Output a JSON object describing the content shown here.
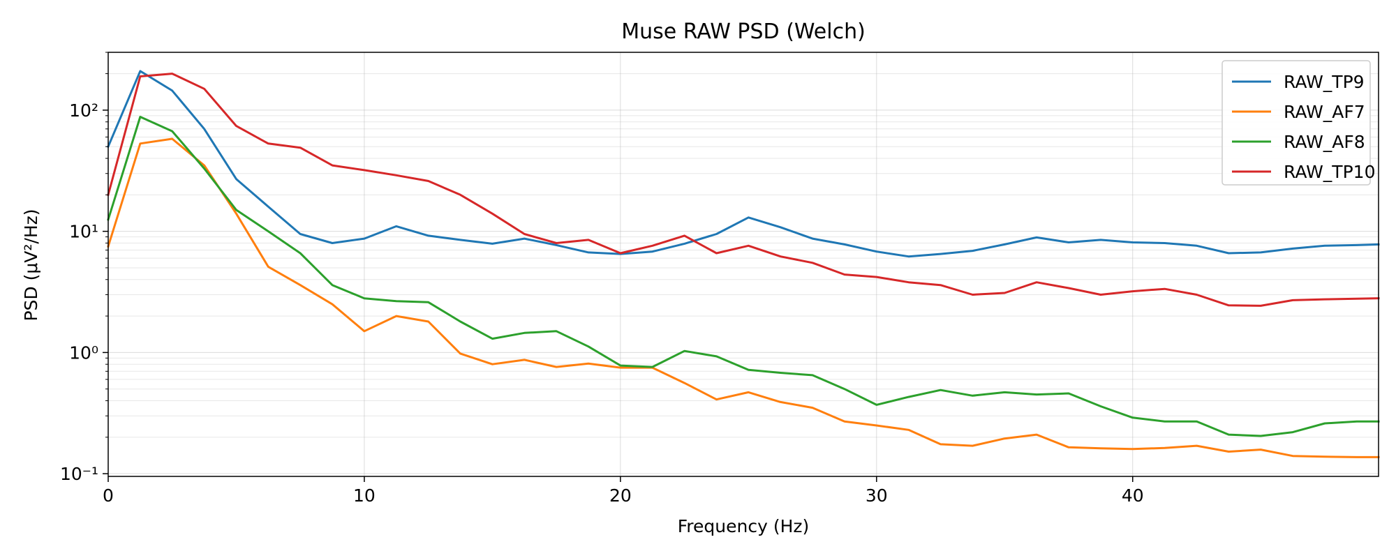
{
  "chart_data": {
    "type": "line",
    "title": "Muse RAW PSD (Welch)",
    "xlabel": "Frequency (Hz)",
    "ylabel": "PSD (μV²/Hz)",
    "yscale": "log",
    "xlim": [
      0,
      49.6
    ],
    "ylim": [
      0.095,
      300
    ],
    "x_ticks": [
      0,
      10,
      20,
      30,
      40
    ],
    "x_tick_labels": [
      "0",
      "10",
      "20",
      "30",
      "40"
    ],
    "y_ticks": [
      0.1,
      1,
      10,
      100
    ],
    "y_tick_labels": [
      "10⁻¹",
      "10⁰",
      "10¹",
      "10²"
    ],
    "grid": true,
    "legend_position": "top-right",
    "x": [
      0,
      1.25,
      2.5,
      3.75,
      5,
      6.25,
      7.5,
      8.75,
      10,
      11.25,
      12.5,
      13.75,
      15,
      16.25,
      17.5,
      18.75,
      20,
      21.25,
      22.5,
      23.75,
      25,
      26.25,
      27.5,
      28.75,
      30,
      31.25,
      32.5,
      33.75,
      35,
      36.25,
      37.5,
      38.75,
      40,
      41.25,
      42.5,
      43.75,
      45,
      46.25,
      47.5,
      48.75,
      49.6
    ],
    "series": [
      {
        "name": "RAW_TP9",
        "color": "#1f77b4",
        "values": [
          50,
          210,
          145,
          70,
          27,
          16,
          9.5,
          8,
          8.7,
          11,
          9.2,
          8.5,
          7.9,
          8.7,
          7.7,
          6.7,
          6.5,
          6.8,
          7.9,
          9.5,
          13,
          10.8,
          8.7,
          7.8,
          6.8,
          6.2,
          6.5,
          6.9,
          7.8,
          8.9,
          8.1,
          8.5,
          8.1,
          8,
          7.6,
          6.6,
          6.7,
          7.2,
          7.6,
          7.7,
          7.8
        ]
      },
      {
        "name": "RAW_AF7",
        "color": "#ff7f0e",
        "values": [
          7.5,
          53,
          58,
          35,
          14,
          5.1,
          3.6,
          2.5,
          1.5,
          2,
          1.8,
          0.98,
          0.8,
          0.87,
          0.76,
          0.81,
          0.75,
          0.75,
          0.56,
          0.41,
          0.47,
          0.39,
          0.35,
          0.27,
          0.25,
          0.23,
          0.175,
          0.17,
          0.195,
          0.21,
          0.165,
          0.162,
          0.16,
          0.163,
          0.17,
          0.152,
          0.158,
          0.14,
          0.138,
          0.137,
          0.137
        ]
      },
      {
        "name": "RAW_AF8",
        "color": "#2ca02c",
        "values": [
          12.5,
          88,
          67,
          33,
          15,
          10,
          6.6,
          3.6,
          2.8,
          2.65,
          2.6,
          1.8,
          1.3,
          1.45,
          1.5,
          1.12,
          0.78,
          0.76,
          1.03,
          0.93,
          0.72,
          0.68,
          0.65,
          0.5,
          0.37,
          0.43,
          0.49,
          0.44,
          0.47,
          0.45,
          0.46,
          0.36,
          0.29,
          0.27,
          0.27,
          0.21,
          0.205,
          0.22,
          0.26,
          0.27,
          0.27
        ]
      },
      {
        "name": "RAW_TP10",
        "color": "#d62728",
        "values": [
          20,
          190,
          200,
          150,
          74,
          53,
          49,
          35,
          32,
          29,
          26,
          20,
          14,
          9.5,
          8,
          8.5,
          6.6,
          7.6,
          9.2,
          6.6,
          7.6,
          6.2,
          5.5,
          4.4,
          4.2,
          3.8,
          3.6,
          3,
          3.1,
          3.8,
          3.4,
          3,
          3.2,
          3.35,
          3,
          2.45,
          2.43,
          2.7,
          2.75,
          2.78,
          2.8
        ]
      }
    ]
  }
}
